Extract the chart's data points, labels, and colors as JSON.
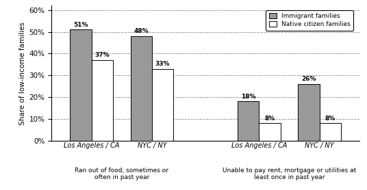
{
  "groups": [
    {
      "label": "Los Angeles / CA",
      "immigrant": 51,
      "native": 37
    },
    {
      "label": "NYC / NY",
      "immigrant": 48,
      "native": 33
    },
    {
      "label": "Los Angeles / CA",
      "immigrant": 18,
      "native": 8
    },
    {
      "label": "NYC / NY",
      "immigrant": 26,
      "native": 8
    }
  ],
  "immigrant_color": "#999999",
  "native_color": "#ffffff",
  "bar_edge_color": "#000000",
  "ylabel": "Share of low-income families",
  "ylim": [
    0,
    62
  ],
  "yticks": [
    0,
    10,
    20,
    30,
    40,
    50,
    60
  ],
  "ytick_labels": [
    "0%",
    "10%",
    "20%",
    "30%",
    "40%",
    "50%",
    "60%"
  ],
  "legend_immigrant": "Immigrant families",
  "legend_native": "Native citizen families",
  "group1_sublabel": "Ran out of food, sometimes or\noften in past year",
  "group2_sublabel": "Unable to pay rent, mortgage or utilities at\nleast once in past year",
  "bar_width": 0.32,
  "positions": [
    0.55,
    1.45,
    3.05,
    3.95
  ],
  "xlim": [
    -0.05,
    4.55
  ],
  "mid1": 1.0,
  "mid2": 3.5
}
